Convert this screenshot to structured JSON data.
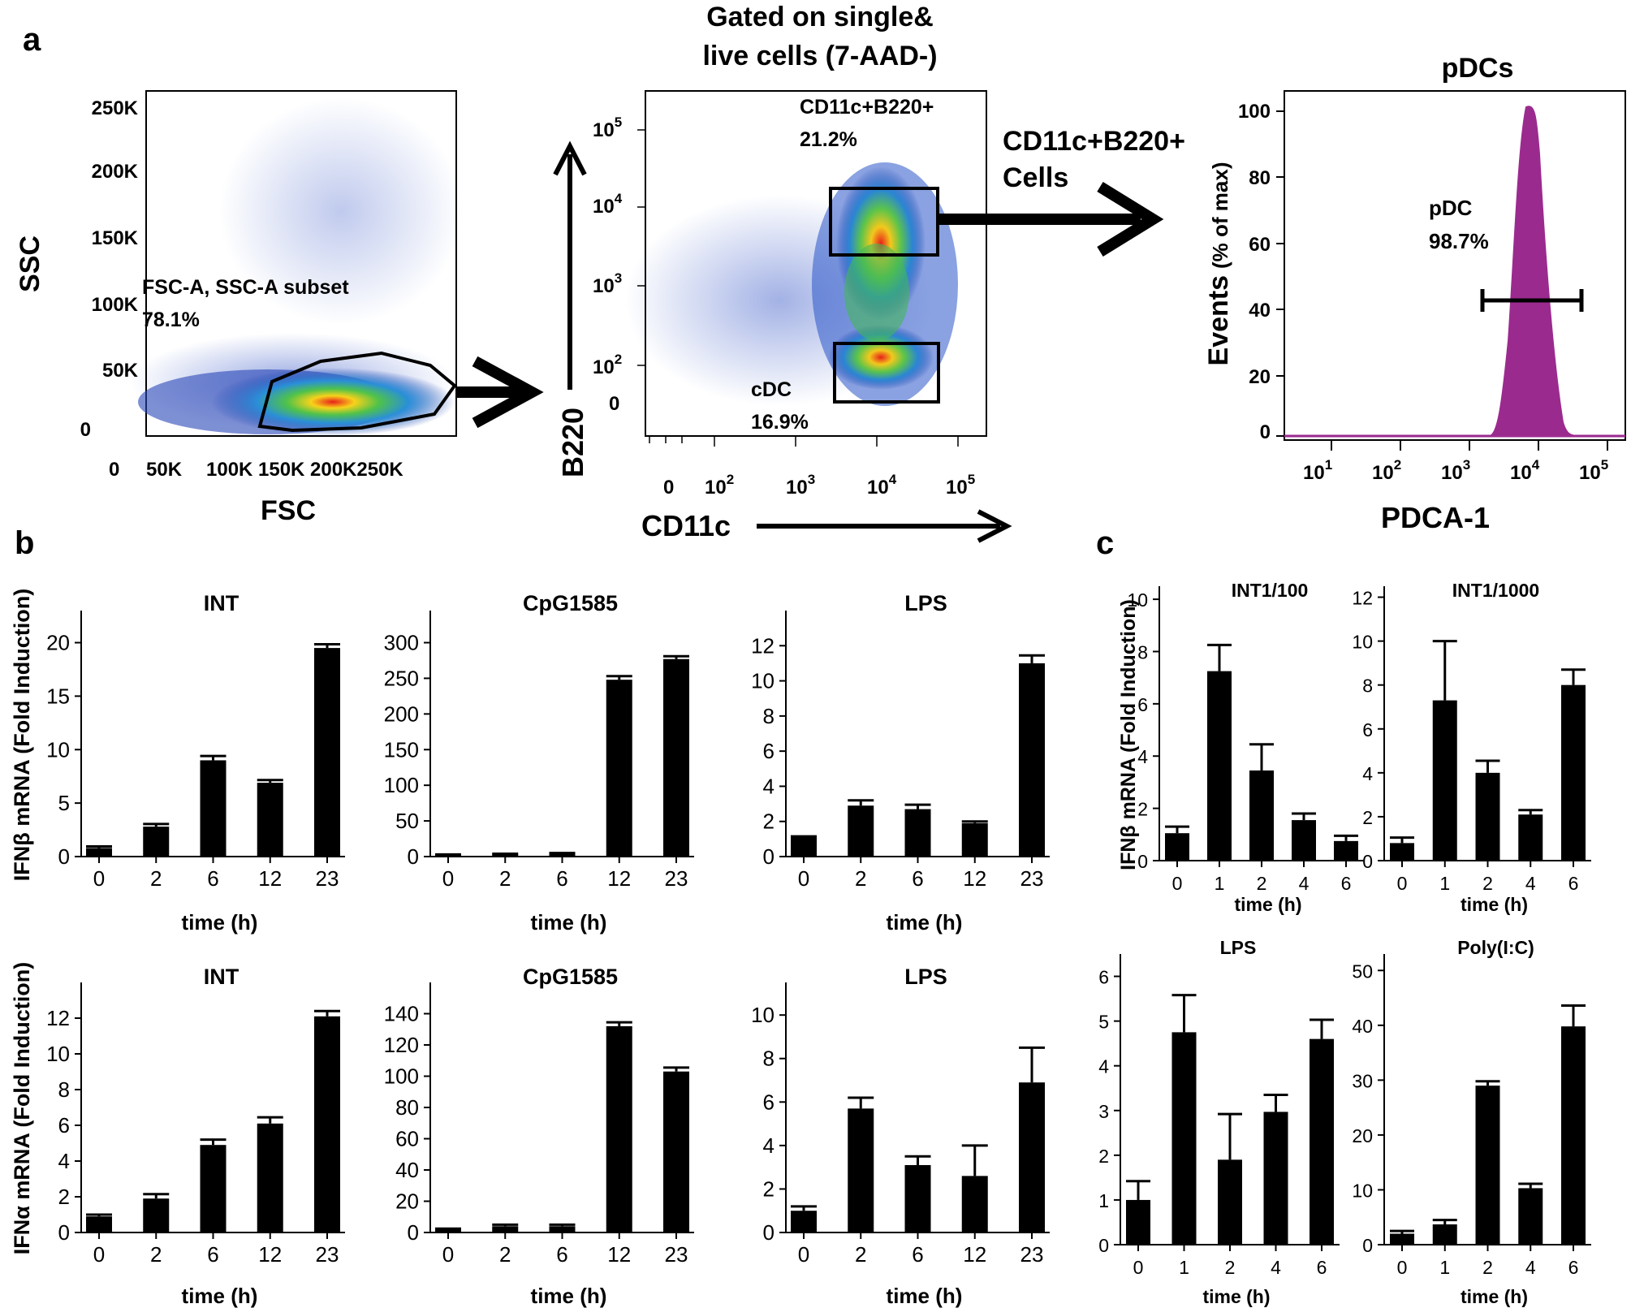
{
  "figure": {
    "panel_labels": [
      "a",
      "b",
      "c"
    ]
  },
  "flow": {
    "scatter1": {
      "xlabel": "FSC",
      "ylabel": "SSC",
      "xticks": [
        "0",
        "50K",
        "100K",
        "150K",
        "200K250K"
      ],
      "yticks": [
        "250K",
        "200K",
        "150K",
        "100K",
        "50K",
        "0"
      ],
      "gate_name": "FSC-A, SSC-A subset",
      "gate_pct": "78.1%"
    },
    "scatter2": {
      "title_line1": "Gated on single&",
      "title_line2": "live cells (7-AAD-)",
      "xlabel": "CD11c",
      "ylabel": "B220",
      "xticks": [
        {
          "label": "0",
          "exp": ""
        },
        {
          "label": "10",
          "exp": "2"
        },
        {
          "label": "10",
          "exp": "3"
        },
        {
          "label": "10",
          "exp": "4"
        },
        {
          "label": "10",
          "exp": "5"
        }
      ],
      "yticks": [
        {
          "label": "10",
          "exp": "5"
        },
        {
          "label": "10",
          "exp": "4"
        },
        {
          "label": "10",
          "exp": "3"
        },
        {
          "label": "10",
          "exp": "2"
        },
        {
          "label": "0",
          "exp": ""
        }
      ],
      "gate_upper_name": "CD11c+B220+",
      "gate_upper_pct": "21.2%",
      "gate_lower_name": "cDC",
      "gate_lower_pct": "16.9%"
    },
    "arrow_label_line1": "CD11c+B220+",
    "arrow_label_line2": "Cells",
    "hist": {
      "title": "pDCs",
      "xlabel": "PDCA-1",
      "ylabel_main": "Events",
      "ylabel_sub": "(% of max)",
      "yticks": [
        "100",
        "80",
        "60",
        "40",
        "20",
        "0"
      ],
      "xticks": [
        {
          "label": "10",
          "exp": "1"
        },
        {
          "label": "10",
          "exp": "2"
        },
        {
          "label": "10",
          "exp": "3"
        },
        {
          "label": "10",
          "exp": "4"
        },
        {
          "label": "10",
          "exp": "5"
        }
      ],
      "gate_name": "pDC",
      "gate_pct": "98.7%",
      "fill_color": "#9b2a8f"
    }
  },
  "chart_data": [
    {
      "type": "bar",
      "title": "INT",
      "xlabel": "time (h)",
      "ylabel": "IFNβ mRNA (Fold Induction)",
      "categories": [
        "0",
        "2",
        "6",
        "12",
        "23"
      ],
      "values": [
        0.8,
        2.8,
        9.0,
        6.9,
        19.5
      ],
      "errors": [
        0.15,
        0.25,
        0.4,
        0.25,
        0.35
      ],
      "ylim": [
        0,
        23
      ],
      "yticks": [
        "0",
        "5",
        "10",
        "15",
        "20"
      ]
    },
    {
      "type": "bar",
      "title": "CpG1585",
      "xlabel": "time (h)",
      "ylabel": "",
      "categories": [
        "0",
        "2",
        "6",
        "12",
        "23"
      ],
      "values": [
        2,
        3,
        4,
        248,
        277
      ],
      "errors": [
        1,
        1,
        1,
        5,
        4
      ],
      "ylim": [
        0,
        345
      ],
      "yticks": [
        "0",
        "50",
        "100",
        "150",
        "200",
        "250",
        "300"
      ]
    },
    {
      "type": "bar",
      "title": "LPS",
      "xlabel": "time (h)",
      "ylabel": "",
      "categories": [
        "0",
        "2",
        "6",
        "12",
        "23"
      ],
      "values": [
        1.1,
        2.9,
        2.7,
        1.9,
        11.0
      ],
      "errors": [
        0.05,
        0.3,
        0.25,
        0.1,
        0.45
      ],
      "ylim": [
        0,
        14
      ],
      "yticks": [
        "0",
        "2",
        "4",
        "6",
        "8",
        "10",
        "12"
      ]
    },
    {
      "type": "bar",
      "title": "INT",
      "xlabel": "time (h)",
      "ylabel": "IFNα mRNA (Fold Induction)",
      "categories": [
        "0",
        "2",
        "6",
        "12",
        "23"
      ],
      "values": [
        0.9,
        1.9,
        4.9,
        6.1,
        12.1
      ],
      "errors": [
        0.1,
        0.25,
        0.3,
        0.35,
        0.3
      ],
      "ylim": [
        0,
        14
      ],
      "yticks": [
        "0",
        "2",
        "4",
        "6",
        "8",
        "10",
        "12"
      ]
    },
    {
      "type": "bar",
      "title": "CpG1585",
      "xlabel": "time (h)",
      "ylabel": "",
      "categories": [
        "0",
        "2",
        "6",
        "12",
        "23"
      ],
      "values": [
        2,
        4,
        4,
        132,
        103
      ],
      "errors": [
        0.5,
        1,
        1,
        2.5,
        2.5
      ],
      "ylim": [
        0,
        160
      ],
      "yticks": [
        "0",
        "20",
        "40",
        "60",
        "80",
        "100",
        "120",
        "140"
      ]
    },
    {
      "type": "bar",
      "title": "LPS",
      "xlabel": "time (h)",
      "ylabel": "",
      "categories": [
        "0",
        "2",
        "6",
        "12",
        "23"
      ],
      "values": [
        1.0,
        5.7,
        3.1,
        2.6,
        6.9
      ],
      "errors": [
        0.2,
        0.5,
        0.4,
        1.4,
        1.6
      ],
      "ylim": [
        0,
        11.5
      ],
      "yticks": [
        "0",
        "2",
        "4",
        "6",
        "8",
        "10"
      ]
    },
    {
      "type": "bar",
      "title": "INT1/100",
      "xlabel": "time (h)",
      "ylabel": "IFNβ mRNA (Fold Induction)",
      "categories": [
        "0",
        "1",
        "2",
        "4",
        "6"
      ],
      "values": [
        1.05,
        7.25,
        3.45,
        1.55,
        0.75
      ],
      "errors": [
        0.25,
        1.0,
        1.0,
        0.25,
        0.2
      ],
      "ylim": [
        0,
        10.5
      ],
      "yticks": [
        "0",
        "2",
        "4",
        "6",
        "8",
        "10"
      ]
    },
    {
      "type": "bar",
      "title": "INT1/1000",
      "xlabel": "time (h)",
      "ylabel": "",
      "categories": [
        "0",
        "1",
        "2",
        "4",
        "6"
      ],
      "values": [
        0.8,
        7.3,
        4.0,
        2.1,
        8.0
      ],
      "errors": [
        0.25,
        2.7,
        0.55,
        0.2,
        0.7
      ],
      "ylim": [
        0,
        12.5
      ],
      "yticks": [
        "0",
        "2",
        "4",
        "6",
        "8",
        "10",
        "12"
      ]
    },
    {
      "type": "bar",
      "title": "LPS",
      "xlabel": "time (h)",
      "ylabel": "",
      "categories": [
        "0",
        "1",
        "2",
        "4",
        "6"
      ],
      "values": [
        1.0,
        4.75,
        1.9,
        2.97,
        4.6
      ],
      "errors": [
        0.42,
        0.83,
        1.02,
        0.38,
        0.43
      ],
      "ylim": [
        0,
        6.5
      ],
      "yticks": [
        "0",
        "1",
        "2",
        "3",
        "4",
        "5",
        "6"
      ]
    },
    {
      "type": "bar",
      "title": "Poly(I:C)",
      "xlabel": "time (h)",
      "ylabel": "",
      "categories": [
        "0",
        "1",
        "2",
        "4",
        "6"
      ],
      "values": [
        2.0,
        3.7,
        29.0,
        10.3,
        39.8
      ],
      "errors": [
        0.5,
        0.8,
        0.8,
        0.8,
        3.8
      ],
      "ylim": [
        0,
        53
      ],
      "yticks": [
        "0",
        "10",
        "20",
        "30",
        "40",
        "50"
      ]
    }
  ]
}
